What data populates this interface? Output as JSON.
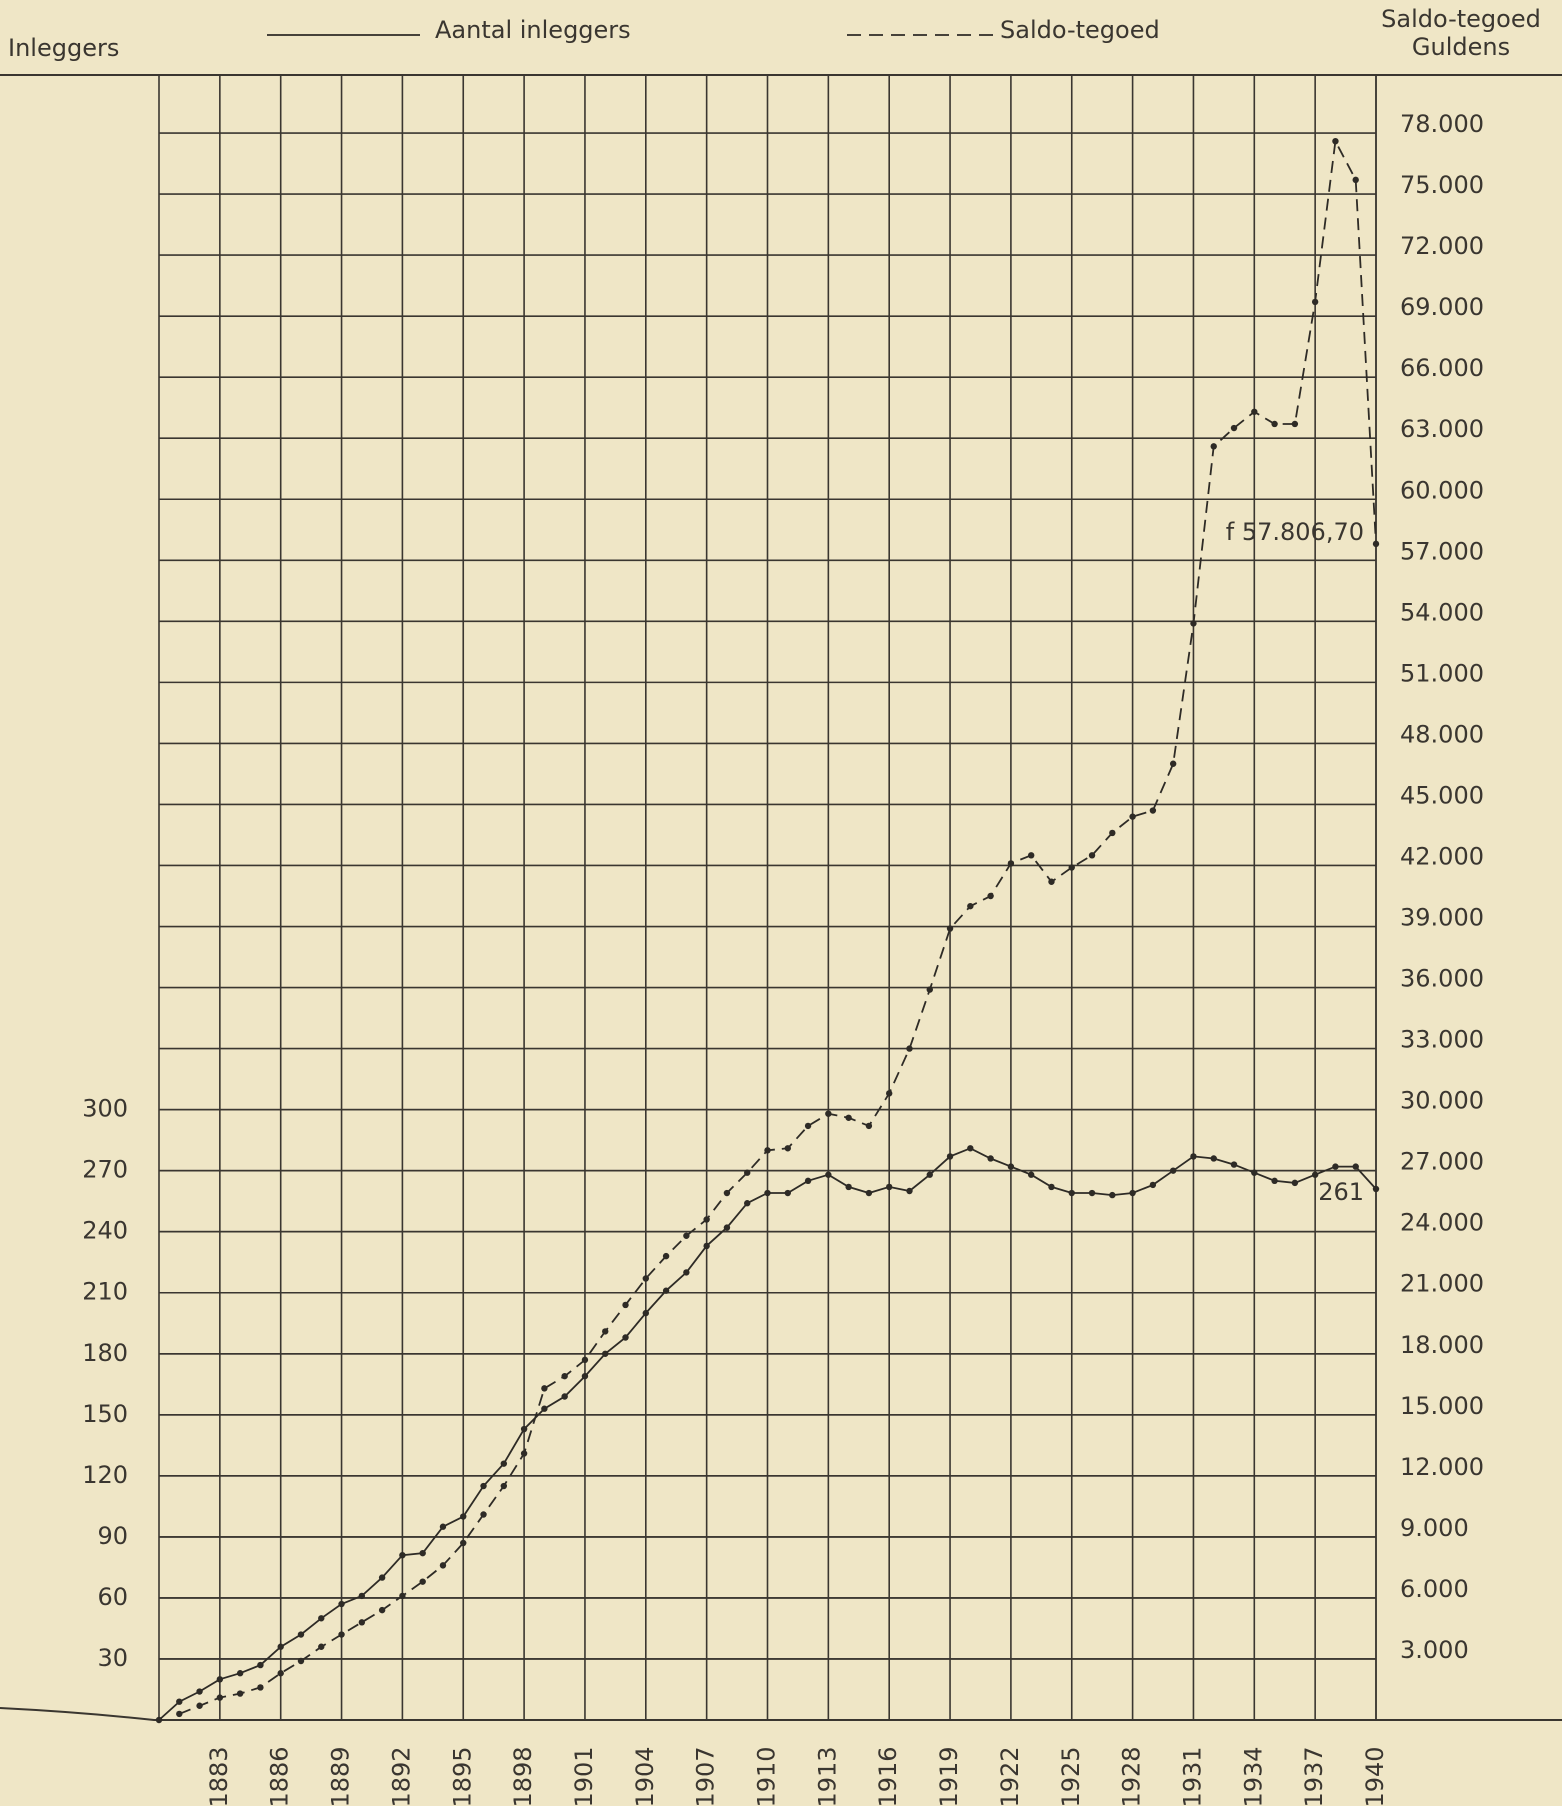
{
  "chart_data": {
    "type": "line",
    "ylabel": "Inleggers",
    "y2label": [
      "Saldo-tegoed",
      "Guldens"
    ],
    "x": [
      1880,
      1881,
      1882,
      1883,
      1884,
      1885,
      1886,
      1887,
      1888,
      1889,
      1890,
      1891,
      1892,
      1893,
      1894,
      1895,
      1896,
      1897,
      1898,
      1899,
      1900,
      1901,
      1902,
      1903,
      1904,
      1905,
      1906,
      1907,
      1908,
      1909,
      1910,
      1911,
      1912,
      1913,
      1914,
      1915,
      1916,
      1917,
      1918,
      1919,
      1920,
      1921,
      1922,
      1923,
      1924,
      1925,
      1926,
      1927,
      1928,
      1929,
      1930,
      1931,
      1932,
      1933,
      1934,
      1935,
      1936,
      1937,
      1938,
      1939,
      1940
    ],
    "xlim": [
      1880,
      1940
    ],
    "xticks": [
      1883,
      1886,
      1889,
      1892,
      1895,
      1898,
      1901,
      1904,
      1907,
      1910,
      1913,
      1916,
      1919,
      1922,
      1925,
      1928,
      1931,
      1934,
      1937,
      1940
    ],
    "ylim": [
      0,
      810
    ],
    "yticks": [
      30,
      60,
      90,
      120,
      150,
      180,
      210,
      240,
      270,
      300
    ],
    "y2lim": [
      0,
      81000
    ],
    "y2ticks": [
      {
        "value": 3000,
        "label": "3.000"
      },
      {
        "value": 6000,
        "label": "6.000"
      },
      {
        "value": 9000,
        "label": "9.000"
      },
      {
        "value": 12000,
        "label": "12.000"
      },
      {
        "value": 15000,
        "label": "15.000"
      },
      {
        "value": 18000,
        "label": "18.000"
      },
      {
        "value": 21000,
        "label": "21.000"
      },
      {
        "value": 24000,
        "label": "24.000"
      },
      {
        "value": 27000,
        "label": "27.000"
      },
      {
        "value": 30000,
        "label": "30.000"
      },
      {
        "value": 33000,
        "label": "33.000"
      },
      {
        "value": 36000,
        "label": "36.000"
      },
      {
        "value": 39000,
        "label": "39.000"
      },
      {
        "value": 42000,
        "label": "42.000"
      },
      {
        "value": 45000,
        "label": "45.000"
      },
      {
        "value": 48000,
        "label": "48.000"
      },
      {
        "value": 51000,
        "label": "51.000"
      },
      {
        "value": 54000,
        "label": "54.000"
      },
      {
        "value": 57000,
        "label": "57.000"
      },
      {
        "value": 60000,
        "label": "60.000"
      },
      {
        "value": 63000,
        "label": "63.000"
      },
      {
        "value": 66000,
        "label": "66.000"
      },
      {
        "value": 69000,
        "label": "69.000"
      },
      {
        "value": 72000,
        "label": "72.000"
      },
      {
        "value": 75000,
        "label": "75.000"
      },
      {
        "value": 78000,
        "label": "78.000"
      }
    ],
    "grid": true,
    "series": [
      {
        "name": "Aantal inleggers",
        "color": "#2e2b26",
        "style": "solid",
        "values": [
          0,
          9,
          14,
          20,
          23,
          27,
          36,
          42,
          50,
          57,
          61,
          70,
          81,
          82,
          95,
          100,
          115,
          126,
          143,
          153,
          159,
          169,
          180,
          188,
          200,
          211,
          220,
          233,
          242,
          254,
          259,
          259,
          265,
          268,
          262,
          259,
          262,
          260,
          268,
          277,
          281,
          276,
          272,
          268,
          262,
          259,
          259,
          258,
          259,
          263,
          270,
          277,
          276,
          273,
          269,
          265,
          264,
          268,
          272,
          272,
          261
        ],
        "labeled": [
          60
        ]
      },
      {
        "name": "Saldo-tegoed",
        "color": "#2e2b26",
        "style": "dashed",
        "axis": "y2",
        "values": [
          null,
          300,
          700,
          1100,
          1300,
          1600,
          2300,
          2900,
          3600,
          4200,
          4800,
          5400,
          6100,
          6800,
          7600,
          8700,
          10100,
          11500,
          13100,
          16300,
          16900,
          17700,
          19100,
          20400,
          21700,
          22800,
          23800,
          24600,
          25900,
          26900,
          28000,
          28100,
          29200,
          29800,
          29600,
          29200,
          30800,
          33000,
          35900,
          38900,
          40000,
          40500,
          42100,
          42500,
          41200,
          41900,
          42500,
          43600,
          44400,
          44700,
          47000,
          53900,
          62600,
          63500,
          64300,
          63700,
          63700,
          69700,
          77600,
          75700,
          57806.7
        ],
        "value_labels": [
          null,
          null,
          null,
          null,
          null,
          null,
          null,
          null,
          null,
          null,
          null,
          null,
          null,
          null,
          null,
          null,
          null,
          null,
          null,
          null,
          null,
          null,
          null,
          null,
          null,
          null,
          null,
          null,
          null,
          null,
          null,
          null,
          null,
          null,
          null,
          null,
          null,
          null,
          null,
          null,
          null,
          null,
          null,
          null,
          null,
          null,
          null,
          null,
          null,
          null,
          null,
          null,
          null,
          null,
          null,
          null,
          null,
          null,
          null,
          null,
          "f 57.806,70"
        ]
      }
    ]
  }
}
